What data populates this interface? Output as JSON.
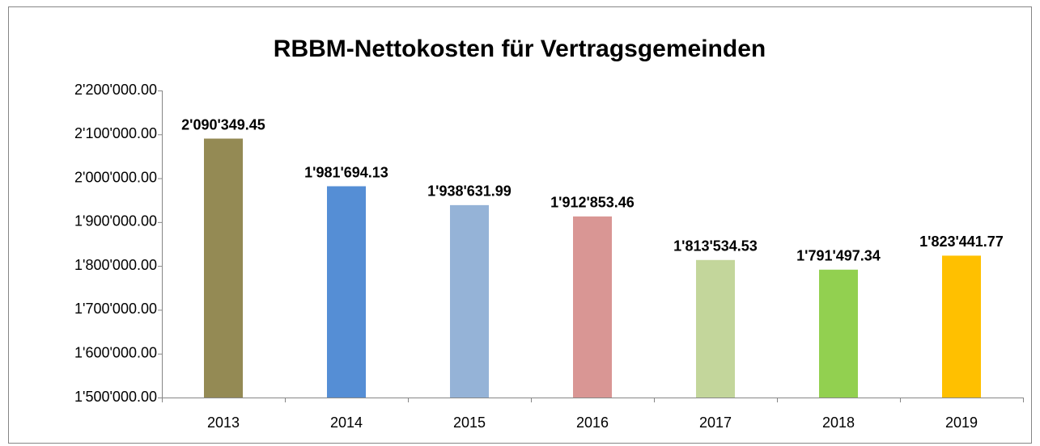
{
  "chart_data": {
    "type": "bar",
    "title": "RBBM-Nettokosten für Vertragsgemeinden",
    "categories": [
      "2013",
      "2014",
      "2015",
      "2016",
      "2017",
      "2018",
      "2019"
    ],
    "values": [
      2090349.45,
      1981694.13,
      1938631.99,
      1912853.46,
      1813534.53,
      1791497.34,
      1823441.77
    ],
    "value_labels": [
      "2'090'349.45",
      "1'981'694.13",
      "1'938'631.99",
      "1'912'853.46",
      "1'813'534.53",
      "1'791'497.34",
      "1'823'441.77"
    ],
    "colors": [
      "#948A54",
      "#558ED5",
      "#95B3D7",
      "#D99694",
      "#C3D69B",
      "#92D050",
      "#FFC000"
    ],
    "ylim": [
      1500000,
      2200000
    ],
    "yticks": [
      {
        "value": 1500000,
        "label": "1'500'000.00"
      },
      {
        "value": 1600000,
        "label": "1'600'000.00"
      },
      {
        "value": 1700000,
        "label": "1'700'000.00"
      },
      {
        "value": 1800000,
        "label": "1'800'000.00"
      },
      {
        "value": 1900000,
        "label": "1'900'000.00"
      },
      {
        "value": 2000000,
        "label": "2'000'000.00"
      },
      {
        "value": 2100000,
        "label": "2'100'000.00"
      },
      {
        "value": 2200000,
        "label": "2'200'000.00"
      }
    ],
    "grid": false
  }
}
